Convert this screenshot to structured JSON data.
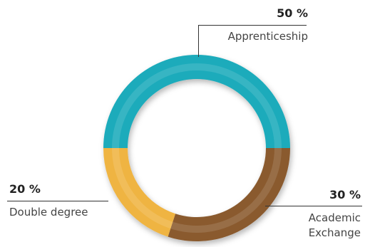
{
  "chart_data": {
    "type": "pie",
    "variant": "donut",
    "slices": [
      {
        "label": "Apprenticeship",
        "value": 50,
        "value_label": "50 %",
        "color": "#1aabbb"
      },
      {
        "label": "Academic Exchange",
        "label_lines": [
          "Academic",
          "Exchange"
        ],
        "value": 30,
        "value_label": "30 %",
        "color": "#8a5a2e"
      },
      {
        "label": "Double degree",
        "value": 20,
        "value_label": "20 %",
        "color": "#efb443"
      }
    ]
  }
}
